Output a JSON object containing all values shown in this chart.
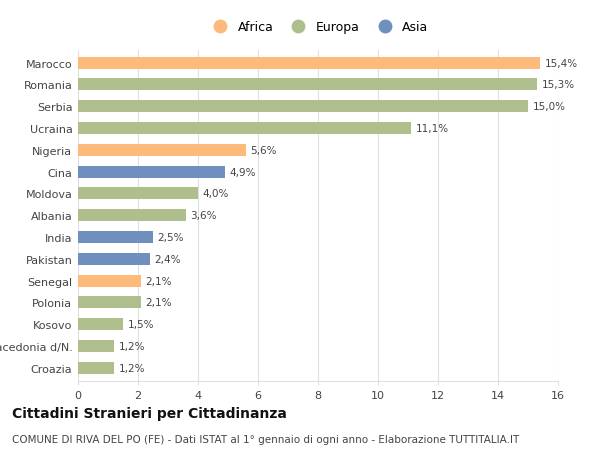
{
  "categories": [
    "Marocco",
    "Romania",
    "Serbia",
    "Ucraina",
    "Nigeria",
    "Cina",
    "Moldova",
    "Albania",
    "India",
    "Pakistan",
    "Senegal",
    "Polonia",
    "Kosovo",
    "Macedonia d/N.",
    "Croazia"
  ],
  "values": [
    15.4,
    15.3,
    15.0,
    11.1,
    5.6,
    4.9,
    4.0,
    3.6,
    2.5,
    2.4,
    2.1,
    2.1,
    1.5,
    1.2,
    1.2
  ],
  "labels": [
    "15,4%",
    "15,3%",
    "15,0%",
    "11,1%",
    "5,6%",
    "4,9%",
    "4,0%",
    "3,6%",
    "2,5%",
    "2,4%",
    "2,1%",
    "2,1%",
    "1,5%",
    "1,2%",
    "1,2%"
  ],
  "continents": [
    "Africa",
    "Europa",
    "Europa",
    "Europa",
    "Africa",
    "Asia",
    "Europa",
    "Europa",
    "Asia",
    "Asia",
    "Africa",
    "Europa",
    "Europa",
    "Europa",
    "Europa"
  ],
  "colors": {
    "Africa": "#FDBA7B",
    "Europa": "#AEBE8C",
    "Asia": "#6F8FBF"
  },
  "legend_order": [
    "Africa",
    "Europa",
    "Asia"
  ],
  "title": "Cittadini Stranieri per Cittadinanza",
  "subtitle": "COMUNE DI RIVA DEL PO (FE) - Dati ISTAT al 1° gennaio di ogni anno - Elaborazione TUTTITALIA.IT",
  "xlim": [
    0,
    16
  ],
  "xticks": [
    0,
    2,
    4,
    6,
    8,
    10,
    12,
    14,
    16
  ],
  "background_color": "#ffffff",
  "grid_color": "#e0e0e0",
  "bar_height": 0.55,
  "title_fontsize": 10,
  "subtitle_fontsize": 7.5,
  "label_fontsize": 7.5,
  "tick_fontsize": 8,
  "legend_fontsize": 9
}
